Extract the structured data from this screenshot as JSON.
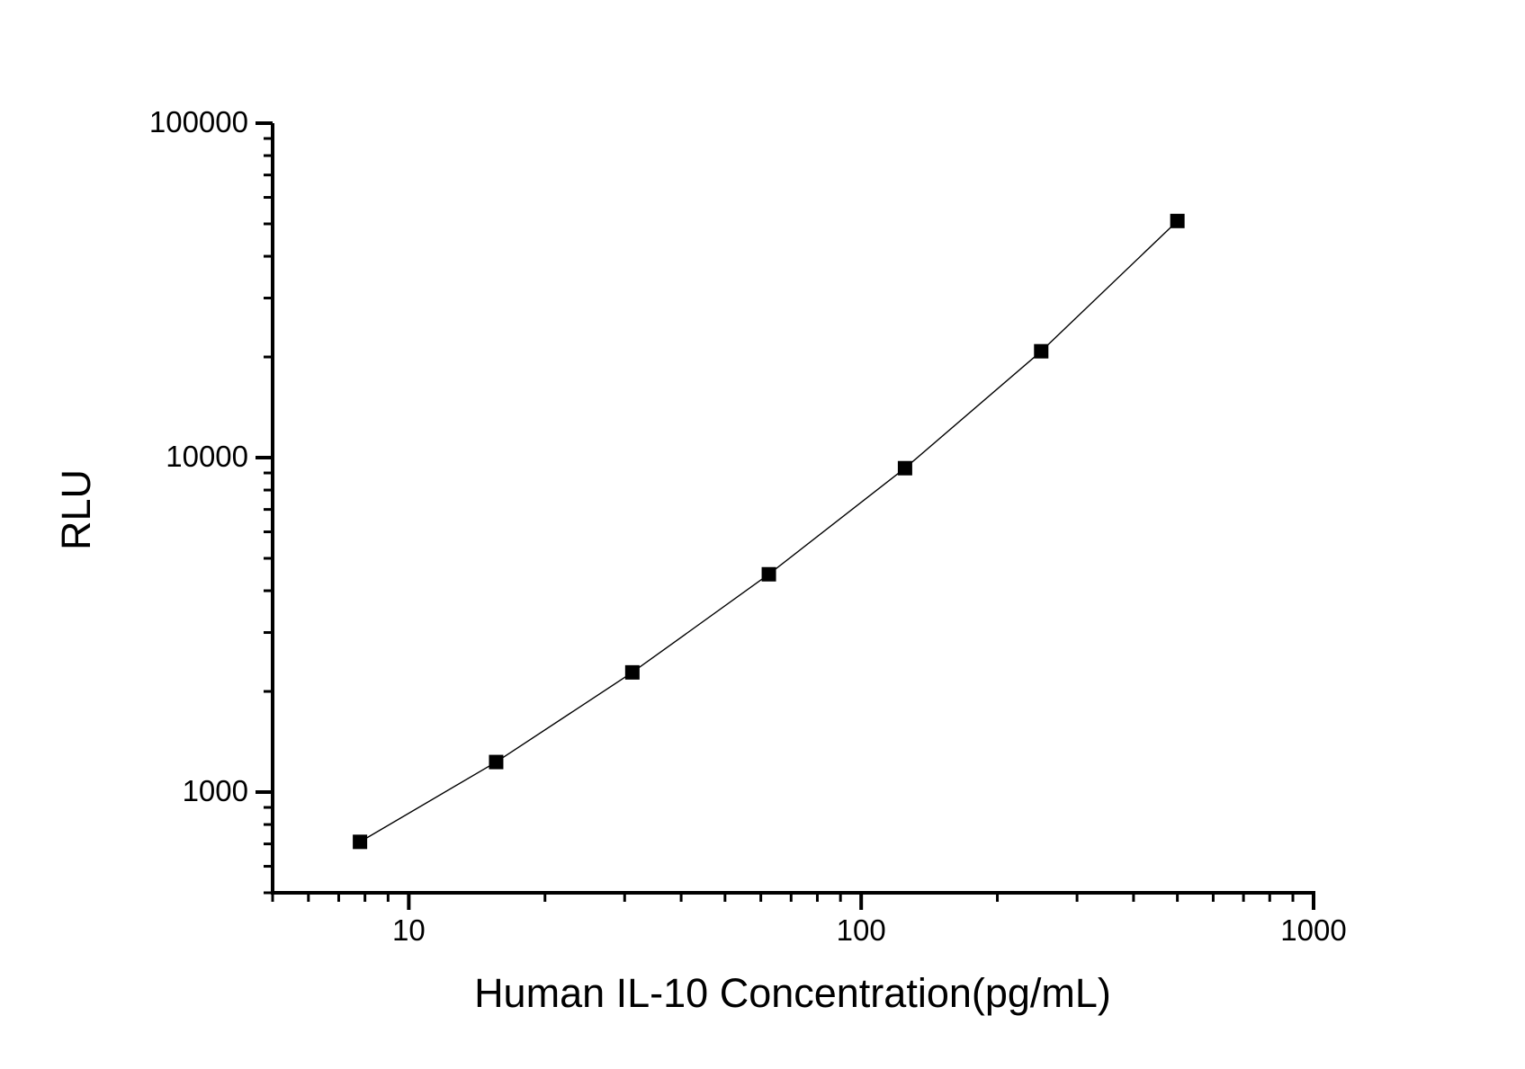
{
  "chart_data": {
    "type": "line",
    "title": "",
    "xlabel": "Human IL-10 Concentration(pg/mL)",
    "ylabel": "RLU",
    "x_scale": "log",
    "y_scale": "log",
    "xlim": [
      5,
      1000
    ],
    "ylim": [
      500,
      100000
    ],
    "grid": false,
    "legend": "none",
    "background_color": "#ffffff",
    "axis_color": "#000000",
    "x_ticks": [
      {
        "value": 10,
        "label": "10"
      },
      {
        "value": 100,
        "label": "100"
      },
      {
        "value": 1000,
        "label": "1000"
      }
    ],
    "y_ticks": [
      {
        "value": 1000,
        "label": "1000"
      },
      {
        "value": 10000,
        "label": "10000"
      },
      {
        "value": 100000,
        "label": "100000"
      }
    ],
    "x_minor_ticks": [
      5,
      6,
      7,
      8,
      9,
      20,
      30,
      40,
      50,
      60,
      70,
      80,
      90,
      200,
      300,
      400,
      500,
      600,
      700,
      800,
      900
    ],
    "y_minor_ticks": [
      500,
      600,
      700,
      800,
      900,
      2000,
      3000,
      4000,
      5000,
      6000,
      7000,
      8000,
      9000,
      20000,
      30000,
      40000,
      50000,
      60000,
      70000,
      80000,
      90000
    ],
    "series": [
      {
        "marker": "filled-square",
        "marker_size": 16,
        "line_width": 1.4,
        "color": "#000000",
        "points": [
          {
            "x": 7.8,
            "y": 710
          },
          {
            "x": 15.6,
            "y": 1230
          },
          {
            "x": 31.2,
            "y": 2280
          },
          {
            "x": 62.5,
            "y": 4480
          },
          {
            "x": 125,
            "y": 9300
          },
          {
            "x": 250,
            "y": 20800
          },
          {
            "x": 500,
            "y": 51000
          }
        ]
      }
    ]
  }
}
